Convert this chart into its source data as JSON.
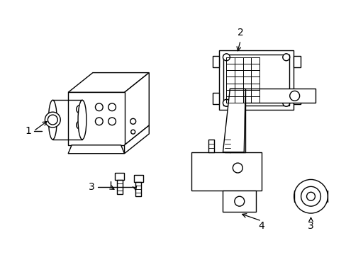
{
  "background_color": "#ffffff",
  "line_color": "#000000",
  "fig_width": 4.89,
  "fig_height": 3.6,
  "dpi": 100,
  "font_size": 10
}
